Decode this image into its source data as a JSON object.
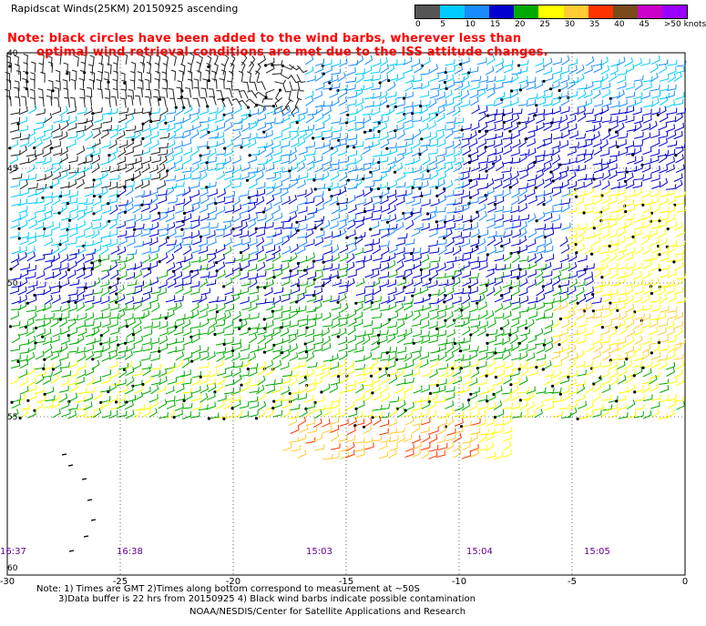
{
  "header": {
    "title": "Rapidscat Winds(25KM) 20150925 ascending"
  },
  "note": {
    "line1": "Note: black circles have been added to the wind barbs, wherever less than",
    "line2": "optimal wind retrieval conditions are met due to the ISS attitude changes."
  },
  "legend": {
    "labels": [
      "0",
      "5",
      "10",
      "15",
      "20",
      "25",
      "30",
      "35",
      "40",
      "45",
      ">50 knots"
    ],
    "colors": [
      "#555555",
      "#00ccff",
      "#1a8cff",
      "#0000cc",
      "#00aa00",
      "#ffff00",
      "#ffcc33",
      "#ff3300",
      "#7a4a1a",
      "#cc00cc",
      "#9900ff"
    ]
  },
  "map": {
    "lat_labels": [
      "40",
      "45",
      "50",
      "55",
      "60"
    ],
    "lon_labels": [
      "-30",
      "-25",
      "-20",
      "-15",
      "-10",
      "-5",
      "0"
    ],
    "time_labels": [
      "16:37",
      "16:38",
      "15:03",
      "15:04",
      "15:05"
    ],
    "lon_range": [
      -30,
      0
    ],
    "lat_range": [
      -60,
      -40
    ]
  },
  "footer": {
    "line1": "Note: 1) Times are GMT 2)Times along bottom correspond to measurement at ~50S",
    "line2": "3)Data buffer is 22 hrs from 20150925 4) Black wind barbs indicate possible contamination",
    "line3": "NOAA/NESDIS/Center for Satellite Applications and Research"
  }
}
